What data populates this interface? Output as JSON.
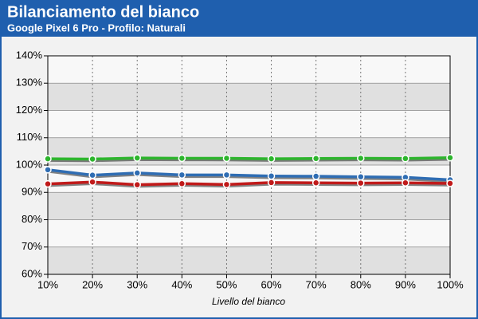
{
  "chart_data": {
    "type": "line",
    "title": "Bilanciamento del bianco",
    "subtitle": "Google Pixel 6 Pro - Profilo: Naturali",
    "x_label": "Livello del bianco",
    "categories": [
      "10%",
      "20%",
      "30%",
      "40%",
      "50%",
      "60%",
      "70%",
      "80%",
      "90%",
      "100%"
    ],
    "series": [
      {
        "color": "#2db52d",
        "values": [
          102.3,
          102.2,
          102.6,
          102.5,
          102.5,
          102.3,
          102.4,
          102.5,
          102.4,
          102.7
        ]
      },
      {
        "color": "#2f6db3",
        "values": [
          98.3,
          96.3,
          97.1,
          96.4,
          96.4,
          96.0,
          95.9,
          95.7,
          95.5,
          94.6
        ]
      },
      {
        "color": "#c01a1a",
        "values": [
          93.1,
          93.8,
          92.8,
          93.2,
          92.9,
          93.6,
          93.5,
          93.4,
          93.5,
          93.3
        ]
      }
    ],
    "ylim": [
      60,
      140
    ],
    "yticks": [
      {
        "value": 60,
        "label": "60%"
      },
      {
        "value": 70,
        "label": "70%"
      },
      {
        "value": 80,
        "label": "80%"
      },
      {
        "value": 90,
        "label": "90%"
      },
      {
        "value": 100,
        "label": "100%"
      },
      {
        "value": 110,
        "label": "110%"
      },
      {
        "value": 120,
        "label": "120%"
      },
      {
        "value": 130,
        "label": "130%"
      },
      {
        "value": 140,
        "label": "140%"
      }
    ],
    "grid": true
  }
}
